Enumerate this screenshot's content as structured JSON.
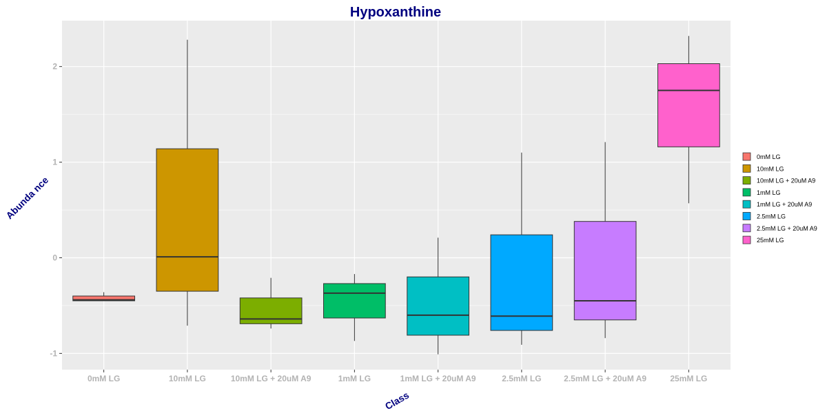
{
  "chart_data": {
    "type": "box",
    "title": "Hypoxanthine",
    "xlabel": "Class",
    "ylabel": "Abunda nce",
    "ylim": [
      -1.17,
      2.48
    ],
    "yticks": [
      -1,
      0,
      1,
      2
    ],
    "ytick_labels": [
      "-1",
      "0",
      "1",
      "2"
    ],
    "grid": true,
    "legend_position": "right",
    "categories": [
      "0mM LG",
      "10mM LG",
      "10mM LG + 20uM A9",
      "1mM LG",
      "1mM LG + 20uM A9",
      "2.5mM LG",
      "2.5mM LG + 20uM A9",
      "25mM LG"
    ],
    "boxes": [
      {
        "category": "0mM LG",
        "whisker_low": -0.45,
        "q1": -0.45,
        "median": -0.44,
        "q3": -0.4,
        "whisker_high": -0.36,
        "color": "#F8766D"
      },
      {
        "category": "10mM LG",
        "whisker_low": -0.71,
        "q1": -0.35,
        "median": 0.01,
        "q3": 1.14,
        "whisker_high": 2.28,
        "color": "#CD9600"
      },
      {
        "category": "10mM LG + 20uM A9",
        "whisker_low": -0.74,
        "q1": -0.69,
        "median": -0.64,
        "q3": -0.42,
        "whisker_high": -0.21,
        "color": "#7CAE00"
      },
      {
        "category": "1mM LG",
        "whisker_low": -0.87,
        "q1": -0.63,
        "median": -0.37,
        "q3": -0.27,
        "whisker_high": -0.17,
        "color": "#00BE67"
      },
      {
        "category": "1mM LG + 20uM A9",
        "whisker_low": -1.01,
        "q1": -0.81,
        "median": -0.6,
        "q3": -0.2,
        "whisker_high": 0.21,
        "color": "#00BFC4"
      },
      {
        "category": "2.5mM LG",
        "whisker_low": -0.91,
        "q1": -0.76,
        "median": -0.61,
        "q3": 0.24,
        "whisker_high": 1.1,
        "color": "#00A9FF"
      },
      {
        "category": "2.5mM LG + 20uM A9",
        "whisker_low": -0.84,
        "q1": -0.65,
        "median": -0.45,
        "q3": 0.38,
        "whisker_high": 1.21,
        "color": "#C77CFF"
      },
      {
        "category": "25mM LG",
        "whisker_low": 0.57,
        "q1": 1.16,
        "median": 1.75,
        "q3": 2.03,
        "whisker_high": 2.32,
        "color": "#FF61CC"
      }
    ],
    "legend": [
      {
        "label": "0mM LG",
        "color": "#F8766D"
      },
      {
        "label": "10mM LG",
        "color": "#CD9600"
      },
      {
        "label": "10mM LG + 20uM A9",
        "color": "#7CAE00"
      },
      {
        "label": "1mM LG",
        "color": "#00BE67"
      },
      {
        "label": "1mM LG + 20uM A9",
        "color": "#00BFC4"
      },
      {
        "label": "2.5mM LG",
        "color": "#00A9FF"
      },
      {
        "label": "2.5mM LG + 20uM A9",
        "color": "#C77CFF"
      },
      {
        "label": "25mM LG",
        "color": "#FF61CC"
      }
    ],
    "colors": {
      "panel_background": "#EBEBEB",
      "grid_major": "#FFFFFF",
      "title": "#00007F",
      "tick_label": "#B3B3B3"
    }
  }
}
